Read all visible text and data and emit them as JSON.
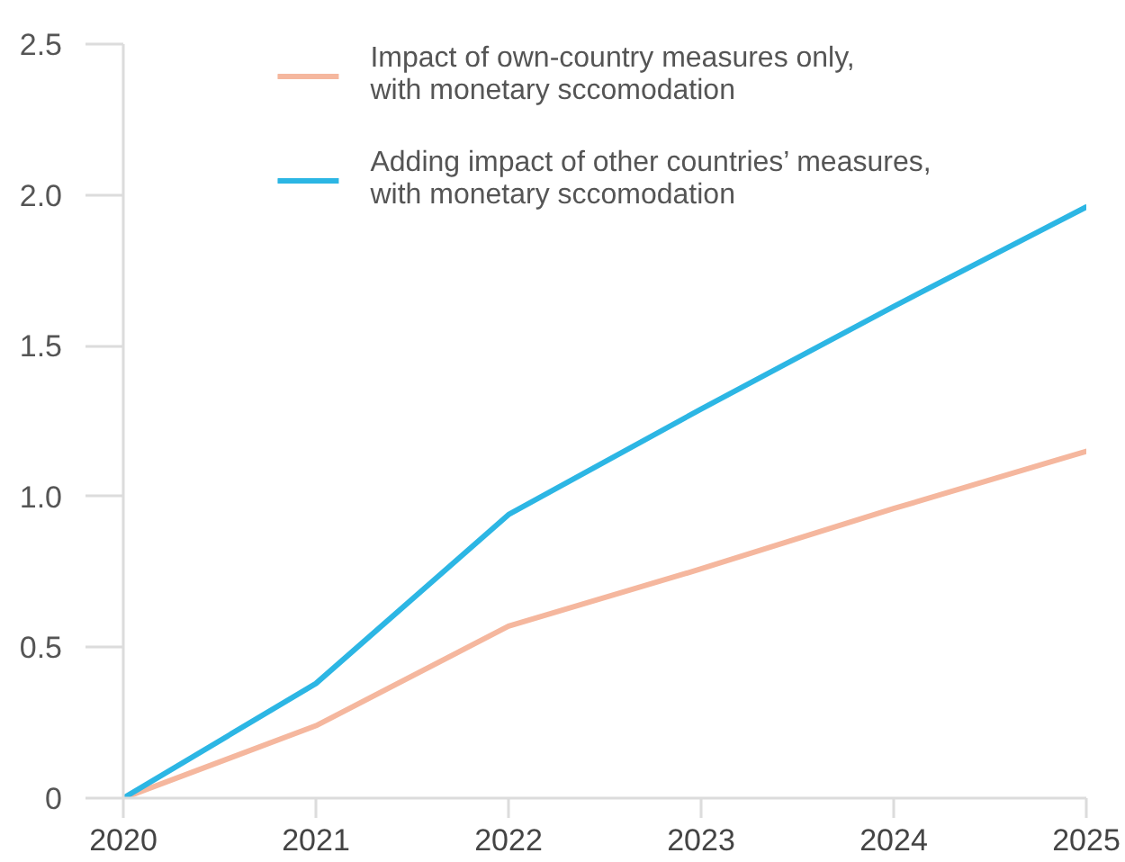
{
  "chart_data": {
    "type": "line",
    "x": [
      2020,
      2021,
      2022,
      2023,
      2024,
      2025
    ],
    "series": [
      {
        "name": "Impact of own-country measures only, with monetary sccomodation",
        "color": "#f5b79e",
        "values": [
          0,
          0.24,
          0.57,
          0.76,
          0.96,
          1.15
        ]
      },
      {
        "name": "Adding impact of other countries’ measures, with monetary sccomodation",
        "color": "#2cb6e4",
        "values": [
          0,
          0.38,
          0.94,
          1.29,
          1.63,
          1.96
        ]
      }
    ],
    "xlim": [
      2020,
      2025
    ],
    "xticks": [
      2020,
      2021,
      2022,
      2023,
      2024,
      2025
    ],
    "ylim": [
      0,
      2.5
    ],
    "yticks": [
      0,
      0.5,
      {
        "value": 1,
        "label": "1.0"
      },
      1.5,
      {
        "value": 2,
        "label": "2.0"
      },
      2.5
    ],
    "legend": "top"
  }
}
